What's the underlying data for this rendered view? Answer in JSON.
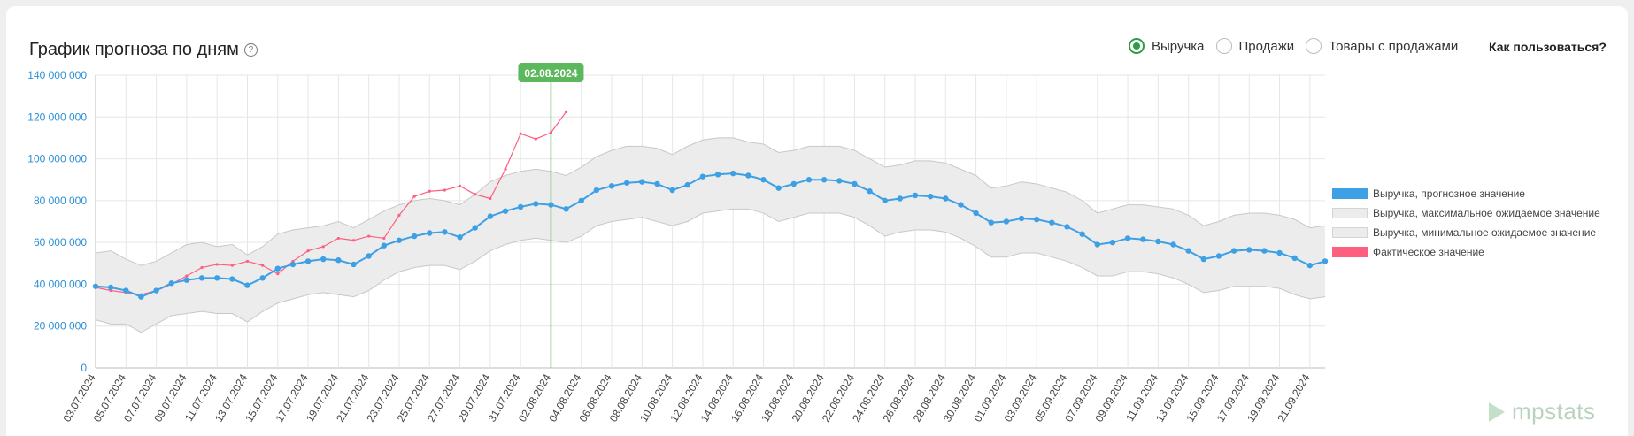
{
  "header": {
    "title": "График прогноза по дням",
    "help_icon": "?",
    "how_to": "Как пользоваться?"
  },
  "radios": [
    {
      "label": "Выручка",
      "selected": true
    },
    {
      "label": "Продажи",
      "selected": false
    },
    {
      "label": "Товары с продажами",
      "selected": false
    }
  ],
  "logo": {
    "text": "mpstats"
  },
  "chart_data": {
    "type": "line",
    "ylim": [
      0,
      140000000
    ],
    "y_ticks": [
      "0",
      "20 000 000",
      "40 000 000",
      "60 000 000",
      "80 000 000",
      "100 000 000",
      "120 000 000",
      "140 000 000"
    ],
    "x_labels": [
      "03.07.2024",
      "05.07.2024",
      "07.07.2024",
      "09.07.2024",
      "11.07.2024",
      "13.07.2024",
      "15.07.2024",
      "17.07.2024",
      "19.07.2024",
      "21.07.2024",
      "23.07.2024",
      "25.07.2024",
      "27.07.2024",
      "29.07.2024",
      "31.07.2024",
      "02.08.2024",
      "04.08.2024",
      "06.08.2024",
      "08.08.2024",
      "10.08.2024",
      "12.08.2024",
      "14.08.2024",
      "16.08.2024",
      "18.08.2024",
      "20.08.2024",
      "22.08.2024",
      "24.08.2024",
      "26.08.2024",
      "28.08.2024",
      "30.08.2024",
      "01.09.2024",
      "03.09.2024",
      "05.09.2024",
      "07.09.2024",
      "09.09.2024",
      "11.09.2024",
      "13.09.2024",
      "15.09.2024",
      "17.09.2024",
      "19.09.2024",
      "21.09.2024"
    ],
    "today_marker": "02.08.2024",
    "legend_position": "right",
    "colors": {
      "forecast": "#3da0e5",
      "band": "#ececec",
      "band_border": "#c8c8c8",
      "actual": "#ff5f7e",
      "marker": "#5cb85c",
      "axis_text": "#2a8fd4"
    },
    "series": [
      {
        "name": "Выручка, прогнозное значение",
        "values": [
          39,
          38.5,
          37,
          34,
          37,
          40.5,
          42,
          43,
          43,
          42.5,
          39.5,
          43,
          47.5,
          49.5,
          51,
          52,
          51.5,
          49.5,
          53.5,
          58.5,
          61,
          63,
          64.5,
          65,
          62.5,
          67,
          72.5,
          75,
          77,
          78.5,
          78,
          76,
          80,
          85,
          87,
          88.5,
          89,
          88,
          85,
          87.5,
          91.5,
          92.5,
          93,
          92,
          90,
          86,
          88,
          90,
          90,
          89.5,
          88,
          84.5,
          80,
          81,
          82.5,
          82,
          81,
          78,
          74,
          69.5,
          70,
          71.5,
          71,
          69.5,
          67.5,
          64,
          59,
          60,
          62,
          61.5,
          60.5,
          59,
          56,
          52,
          53.5,
          56,
          56.5,
          56,
          55,
          52.5,
          49,
          51
        ]
      },
      {
        "name": "Выручка, максимальное ожидаемое значение",
        "values": [
          55,
          56,
          52,
          49,
          51,
          55,
          59,
          60,
          58,
          59,
          54,
          58,
          64,
          66,
          67,
          68,
          70,
          67,
          71,
          75,
          78,
          80,
          81,
          80,
          78,
          83,
          89,
          92,
          94,
          95,
          94,
          92,
          96,
          101,
          104,
          106,
          106,
          105,
          102,
          106,
          109,
          110,
          110,
          108,
          107,
          103,
          104,
          106,
          106,
          106,
          104,
          100,
          96,
          97,
          99,
          99,
          98,
          95,
          92,
          86,
          87,
          89,
          88,
          86,
          84,
          80,
          74,
          76,
          78,
          78,
          77,
          76,
          73,
          68,
          70,
          73,
          74,
          74,
          73,
          71,
          67,
          68
        ]
      },
      {
        "name": "Выручка, минимальное ожидаемое значение",
        "values": [
          23,
          21,
          21,
          17,
          21,
          25,
          26,
          27,
          26,
          26,
          22,
          27,
          31,
          33,
          35,
          36,
          35,
          34,
          37,
          42,
          46,
          48,
          49,
          49,
          47,
          51,
          56,
          59,
          61,
          62,
          61,
          60,
          63,
          68,
          70,
          71,
          72,
          70,
          68,
          70,
          74,
          75,
          76,
          76,
          74,
          70,
          72,
          74,
          74,
          74,
          72,
          68,
          63,
          65,
          66,
          66,
          65,
          62,
          58,
          53,
          53,
          55,
          55,
          53,
          51,
          48,
          44,
          44,
          46,
          46,
          45,
          43,
          40,
          36,
          37,
          39,
          39,
          39,
          38,
          35,
          33,
          34
        ]
      },
      {
        "name": "Фактическое значение",
        "values": [
          38.5,
          37,
          36,
          35,
          37,
          40,
          44,
          48,
          49.5,
          49,
          51,
          49,
          45,
          51,
          56,
          58,
          62,
          61,
          63,
          62,
          73,
          82,
          84.5,
          85,
          87,
          83,
          81,
          95,
          112,
          109.5,
          112.5,
          122.5
        ]
      }
    ]
  }
}
